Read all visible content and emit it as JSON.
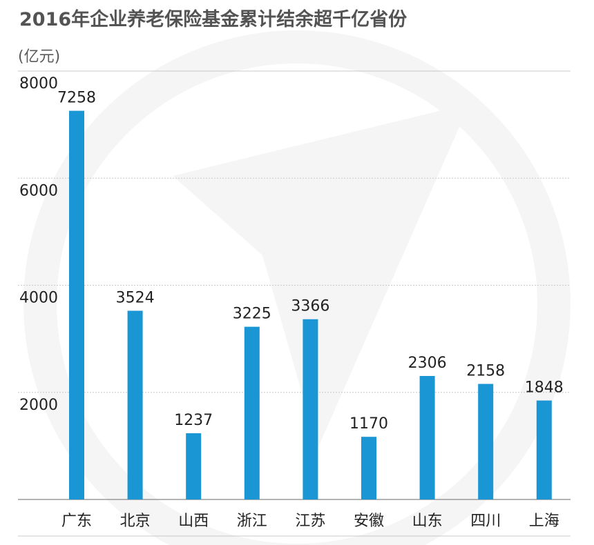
{
  "chart_data": {
    "type": "bar",
    "title": "2016年企业养老保险基金累计结余超千亿省份",
    "ylabel": "(亿元)",
    "xlabel": "",
    "categories": [
      "广东",
      "北京",
      "山西",
      "浙江",
      "江苏",
      "安徽",
      "山东",
      "四川",
      "上海"
    ],
    "values": [
      7258,
      3524,
      1237,
      3225,
      3366,
      1170,
      2306,
      2158,
      1848
    ],
    "ylim": [
      0,
      8000
    ],
    "yticks": [
      "8000",
      "6000",
      "4000",
      "2000"
    ],
    "grid": true,
    "legend": "none",
    "bar_color": "#1a96d5",
    "grid_color": "#c8c8c8",
    "watermark_color": "#f2f2f2"
  }
}
